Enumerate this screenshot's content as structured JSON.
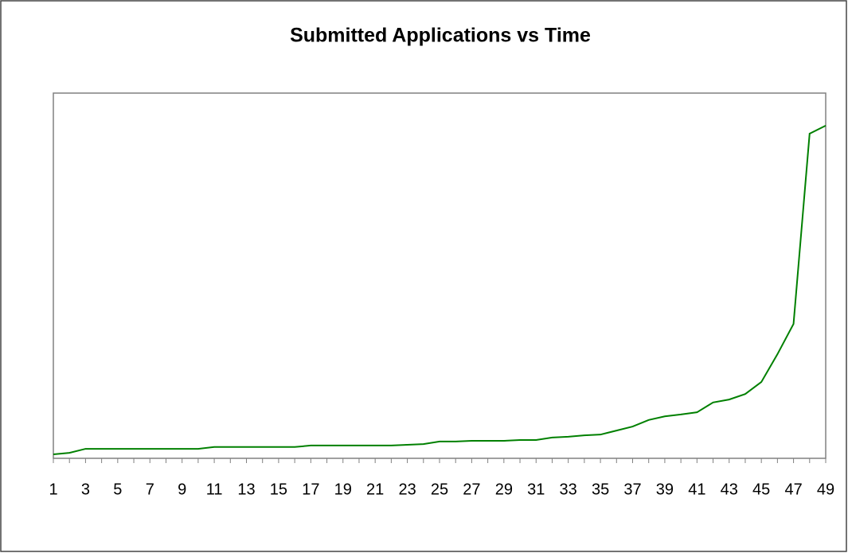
{
  "chart_data": {
    "type": "line",
    "title": "Submitted Applications vs Time",
    "categories": [
      1,
      null,
      3,
      null,
      5,
      null,
      7,
      null,
      9,
      null,
      11,
      null,
      13,
      null,
      15,
      null,
      17,
      null,
      19,
      null,
      21,
      null,
      23,
      null,
      25,
      null,
      27,
      null,
      29,
      null,
      31,
      null,
      33,
      null,
      35,
      null,
      37,
      null,
      39,
      null,
      41,
      null,
      43,
      null,
      45,
      null,
      47,
      null,
      49
    ],
    "series": [
      {
        "name": "Submitted Applications",
        "color": "#008000",
        "values": [
          1.1,
          1.5,
          2.6,
          2.6,
          2.6,
          2.6,
          2.6,
          2.6,
          2.6,
          2.6,
          3.1,
          3.1,
          3.1,
          3.1,
          3.1,
          3.1,
          3.5,
          3.5,
          3.5,
          3.5,
          3.5,
          3.5,
          3.7,
          3.9,
          4.6,
          4.6,
          4.8,
          4.8,
          4.8,
          5.0,
          5.0,
          5.7,
          5.9,
          6.3,
          6.5,
          7.6,
          8.7,
          10.5,
          11.5,
          12.0,
          12.6,
          15.3,
          16.1,
          17.6,
          20.9,
          28.5,
          36.8,
          88.9,
          91.1
        ]
      }
    ],
    "ylim": [
      0,
      100
    ]
  }
}
